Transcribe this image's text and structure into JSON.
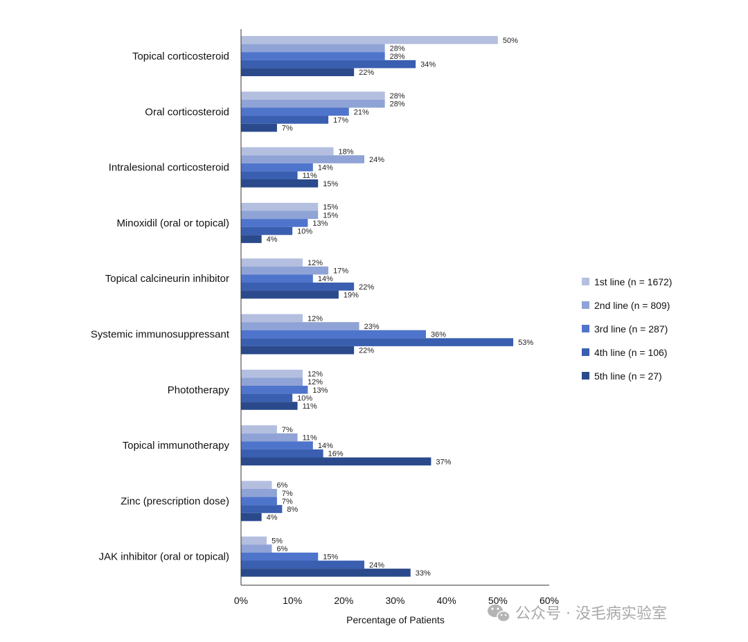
{
  "chart_data": {
    "type": "bar",
    "orientation": "horizontal",
    "categories": [
      "Topical corticosteroid",
      "Oral corticosteroid",
      "Intralesional corticosteroid",
      "Minoxidil (oral or topical)",
      "Topical calcineurin inhibitor",
      "Systemic immunosuppressant",
      "Phototherapy",
      "Topical immunotherapy",
      "Zinc (prescription dose)",
      "JAK inhibitor (oral or topical)"
    ],
    "series": [
      {
        "name": "1st line (n = 1672)",
        "color": "#b4bfe0",
        "values": [
          50,
          28,
          18,
          15,
          12,
          12,
          12,
          7,
          6,
          5
        ]
      },
      {
        "name": "2nd line (n = 809)",
        "color": "#8fa3d6",
        "values": [
          28,
          28,
          24,
          15,
          17,
          23,
          12,
          11,
          7,
          6
        ]
      },
      {
        "name": "3rd line (n = 287)",
        "color": "#4f74cc",
        "values": [
          28,
          21,
          14,
          13,
          14,
          36,
          13,
          14,
          7,
          15
        ]
      },
      {
        "name": "4th line (n = 106)",
        "color": "#3a5fb0",
        "values": [
          34,
          17,
          11,
          10,
          22,
          53,
          10,
          16,
          8,
          24
        ]
      },
      {
        "name": "5th line (n = 27)",
        "color": "#2b4a8c",
        "values": [
          22,
          7,
          15,
          4,
          19,
          22,
          11,
          37,
          4,
          33
        ]
      }
    ],
    "xlabel": "Percentage of Patients",
    "xlim": [
      0,
      60
    ],
    "xticks": [
      0,
      10,
      20,
      30,
      40,
      50,
      60
    ],
    "tick_suffix": "%",
    "value_suffix": "%",
    "legend_position": "right",
    "grid": false
  },
  "watermark": {
    "icon": "wechat-icon",
    "text": "公众号 · 没毛病实验室"
  }
}
